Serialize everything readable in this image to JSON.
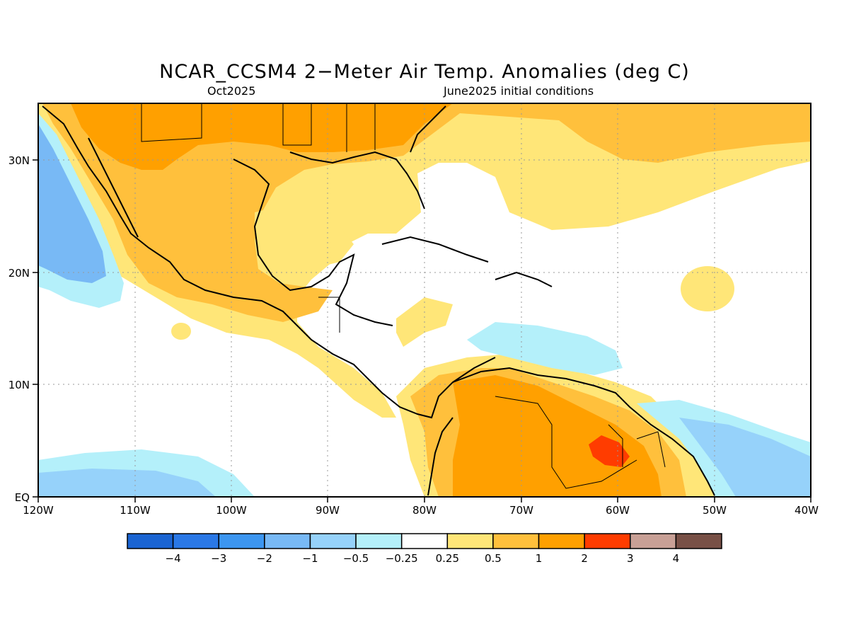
{
  "map": {
    "title": "NCAR_CCSM4 2−Meter Air Temp. Anomalies (deg C)",
    "valid_month": "Oct2025",
    "init_label": "June2025 initial conditions",
    "lon_labels": [
      "120W",
      "110W",
      "100W",
      "90W",
      "80W",
      "70W",
      "60W",
      "50W",
      "40W"
    ],
    "lat_labels": [
      "30N",
      "20N",
      "10N",
      "EQ"
    ]
  },
  "colorbar": {
    "colors": [
      "#1a64d2",
      "#2a78e6",
      "#3c96f0",
      "#78b9f5",
      "#96d2fa",
      "#b4f0fa",
      "#ffffff",
      "#ffe678",
      "#ffc03c",
      "#ffa000",
      "#ff3c00",
      "#c8a096",
      "#785046"
    ],
    "labels": [
      "−4",
      "−3",
      "−2",
      "−1",
      "−0.5",
      "−0.25",
      "0.25",
      "0.5",
      "1",
      "2",
      "3",
      "4"
    ]
  },
  "palette": {
    "light_yellow": "#ffe678",
    "light_orange": "#ffc03c",
    "orange": "#ffa000",
    "red": "#ff3c00",
    "light_cyan": "#b4f0fa",
    "light_blue": "#96d2fa",
    "blue": "#78b9f5",
    "land_outline": "#000000"
  }
}
